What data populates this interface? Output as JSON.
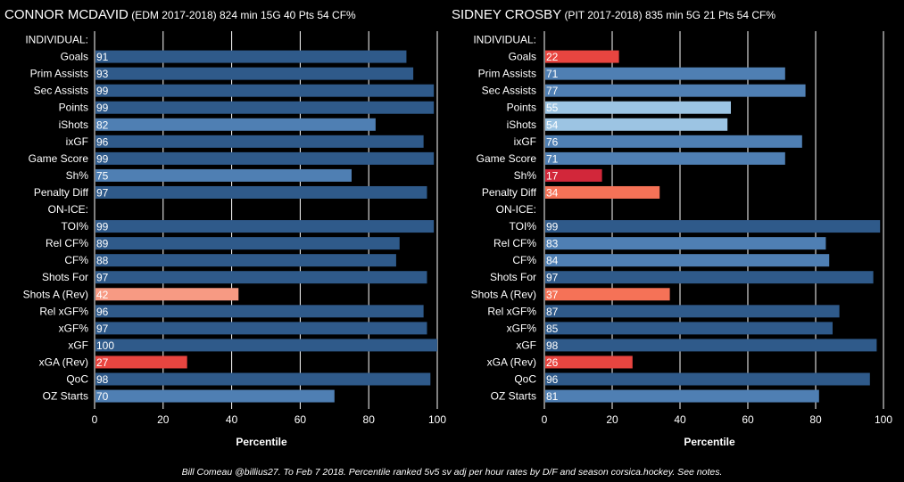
{
  "footnote": "Bill Comeau @billius27. To Feb 7 2018. Percentile ranked 5v5 sv adj per hour rates by D/F and season corsica.hockey. See notes.",
  "colors": {
    "background": "#000000",
    "gridline": "#ffffff",
    "strong_blue": "#2f5a8a",
    "mid_blue": "#4f7fb3",
    "light_blue": "#9cc4e3",
    "dark_red": "#d2273a",
    "red": "#e84540",
    "salmon": "#f57257",
    "light_salmon": "#f79a83"
  },
  "chart_data": [
    {
      "type": "bar",
      "orientation": "horizontal",
      "player": "CONNOR MCDAVID",
      "team_season": "(EDM  2017-2018)",
      "summary": "824 min  15G  40 Pts  54 CF%",
      "xlabel": "Percentile",
      "xlim": [
        0,
        100
      ],
      "xticks": [
        0,
        20,
        40,
        60,
        80,
        100
      ],
      "grid": true,
      "rows": [
        {
          "label": "INDIVIDUAL:",
          "header": true
        },
        {
          "label": "Goals",
          "value": 91
        },
        {
          "label": "Prim Assists",
          "value": 93
        },
        {
          "label": "Sec Assists",
          "value": 99
        },
        {
          "label": "Points",
          "value": 99
        },
        {
          "label": "iShots",
          "value": 82
        },
        {
          "label": "ixGF",
          "value": 96
        },
        {
          "label": "Game Score",
          "value": 99
        },
        {
          "label": "Sh%",
          "value": 75
        },
        {
          "label": "Penalty Diff",
          "value": 97
        },
        {
          "label": "ON-ICE:",
          "header": true
        },
        {
          "label": "TOI%",
          "value": 99
        },
        {
          "label": "Rel CF%",
          "value": 89
        },
        {
          "label": "CF%",
          "value": 88
        },
        {
          "label": "Shots For",
          "value": 97
        },
        {
          "label": "Shots A (Rev)",
          "value": 42
        },
        {
          "label": "Rel xGF%",
          "value": 96
        },
        {
          "label": "xGF%",
          "value": 97
        },
        {
          "label": "xGF",
          "value": 100
        },
        {
          "label": "xGA (Rev)",
          "value": 27
        },
        {
          "label": "QoC",
          "value": 98
        },
        {
          "label": "OZ Starts",
          "value": 70
        }
      ]
    },
    {
      "type": "bar",
      "orientation": "horizontal",
      "player": "SIDNEY CROSBY",
      "team_season": "(PIT  2017-2018)",
      "summary": "835 min  5G  21 Pts  54 CF%",
      "xlabel": "Percentile",
      "xlim": [
        0,
        100
      ],
      "xticks": [
        0,
        20,
        40,
        60,
        80,
        100
      ],
      "grid": true,
      "rows": [
        {
          "label": "INDIVIDUAL:",
          "header": true
        },
        {
          "label": "Goals",
          "value": 22
        },
        {
          "label": "Prim Assists",
          "value": 71
        },
        {
          "label": "Sec Assists",
          "value": 77
        },
        {
          "label": "Points",
          "value": 55
        },
        {
          "label": "iShots",
          "value": 54
        },
        {
          "label": "ixGF",
          "value": 76
        },
        {
          "label": "Game Score",
          "value": 71
        },
        {
          "label": "Sh%",
          "value": 17
        },
        {
          "label": "Penalty Diff",
          "value": 34
        },
        {
          "label": "ON-ICE:",
          "header": true
        },
        {
          "label": "TOI%",
          "value": 99
        },
        {
          "label": "Rel CF%",
          "value": 83
        },
        {
          "label": "CF%",
          "value": 84
        },
        {
          "label": "Shots For",
          "value": 97
        },
        {
          "label": "Shots A (Rev)",
          "value": 37
        },
        {
          "label": "Rel xGF%",
          "value": 87
        },
        {
          "label": "xGF%",
          "value": 85
        },
        {
          "label": "xGF",
          "value": 98
        },
        {
          "label": "xGA (Rev)",
          "value": 26
        },
        {
          "label": "QoC",
          "value": 96
        },
        {
          "label": "OZ Starts",
          "value": 81
        }
      ]
    }
  ]
}
